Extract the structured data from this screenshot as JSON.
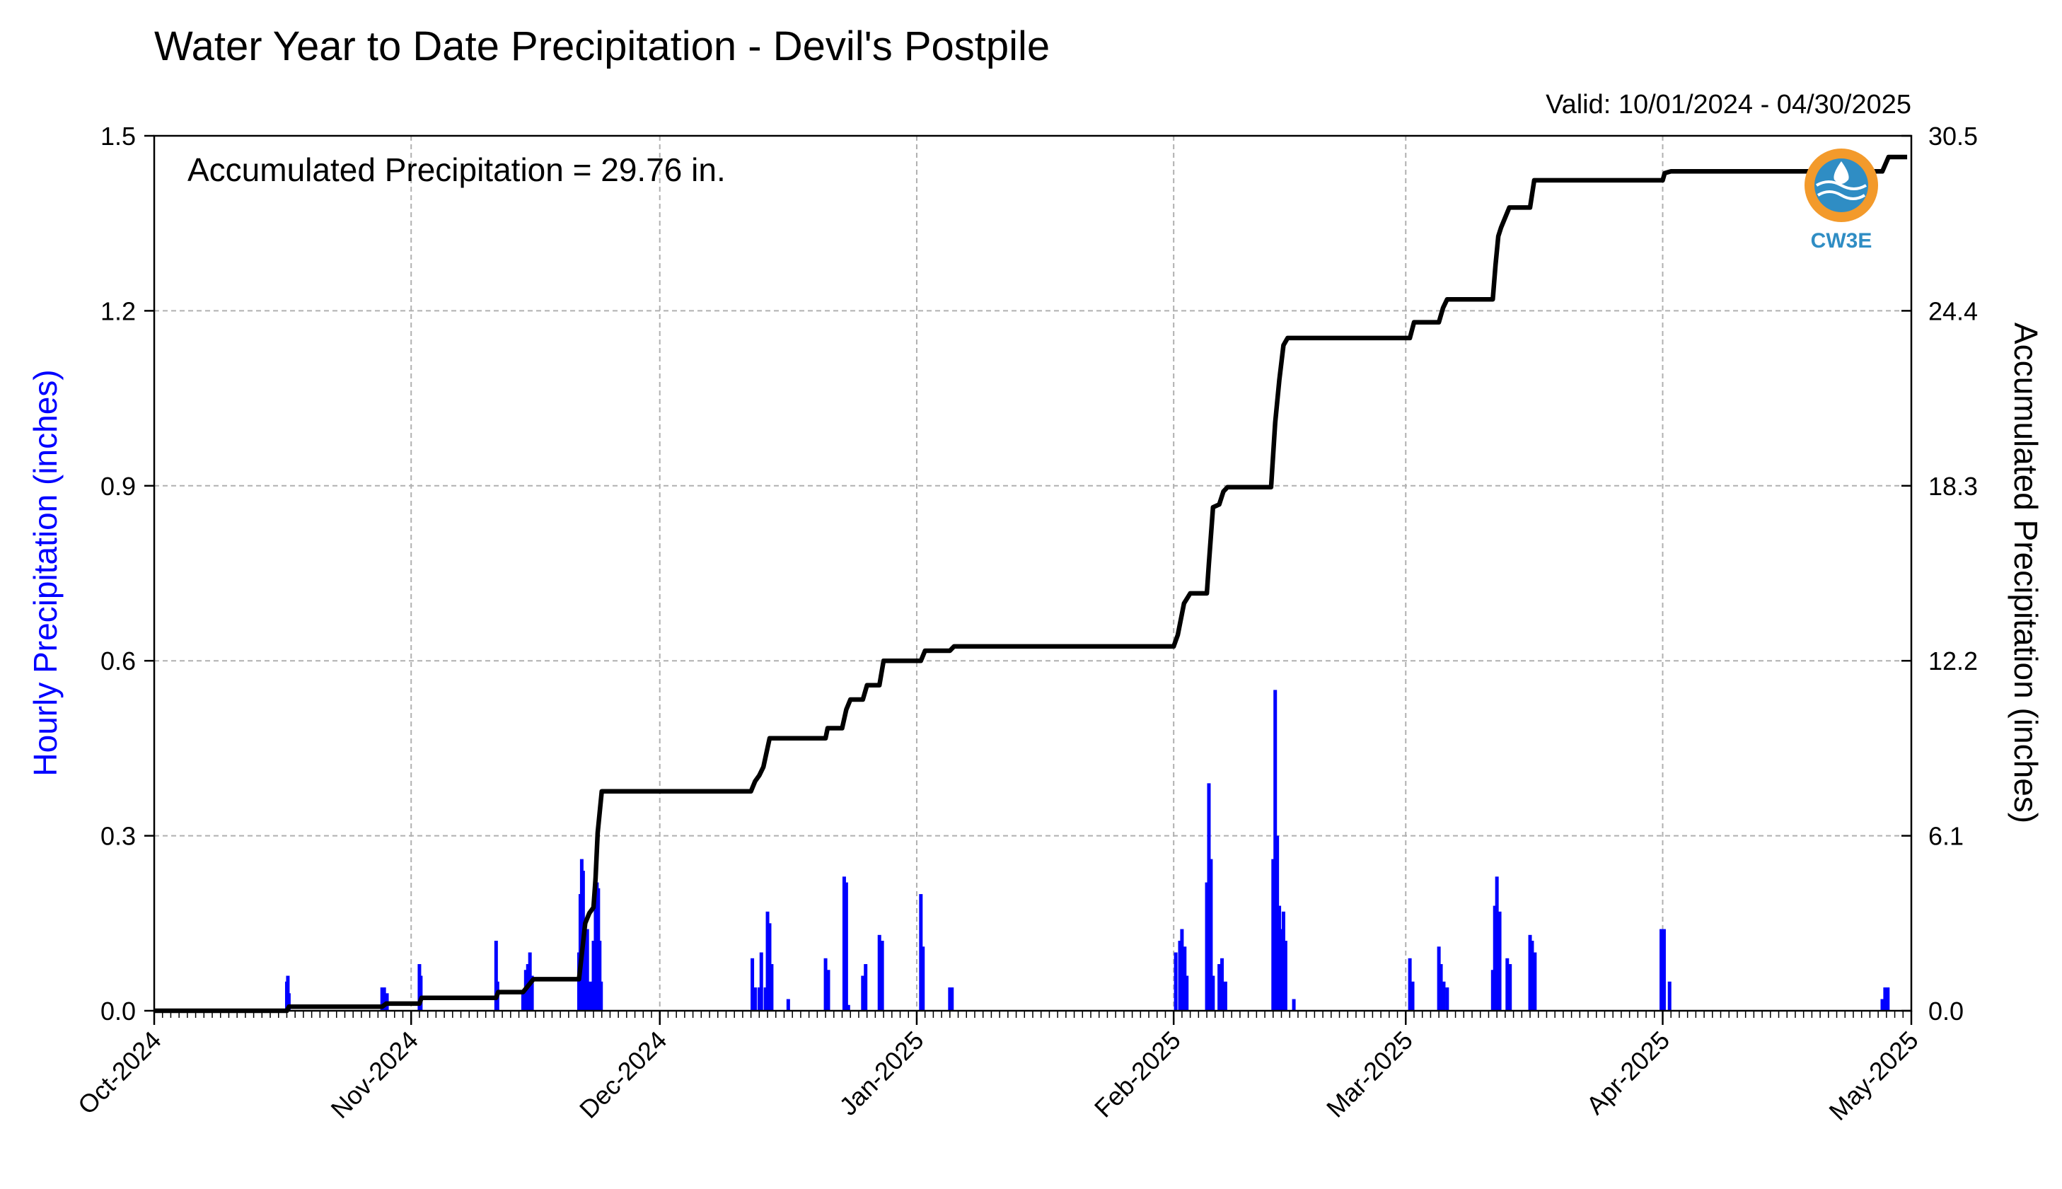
{
  "chart_data": {
    "type": "bar",
    "title": "Water Year to Date Precipitation - Devil's Postpile",
    "subtitle": "Valid: 10/01/2024 - 04/30/2025",
    "annotation": "Accumulated Precipitation = 29.76 in.",
    "logo_text": "CW3E",
    "ylabel": "Hourly Precipitation (inches)",
    "ylabel_right": "Accumulated Precipitation (inches)",
    "ylim": [
      0,
      1.5
    ],
    "ylim_right": [
      0,
      30.5
    ],
    "yticks": [
      "0.0",
      "0.3",
      "0.6",
      "0.9",
      "1.2",
      "1.5"
    ],
    "yticks_right": [
      "0.0",
      "6.1",
      "12.2",
      "18.3",
      "24.4",
      "30.5"
    ],
    "x_range": [
      "2024-10-01",
      "2025-05-01"
    ],
    "xticks": [
      {
        "date": "2024-10-01",
        "label": "Oct-2024"
      },
      {
        "date": "2024-11-01",
        "label": "Nov-2024"
      },
      {
        "date": "2024-12-01",
        "label": "Dec-2024"
      },
      {
        "date": "2025-01-01",
        "label": "Jan-2025"
      },
      {
        "date": "2025-02-01",
        "label": "Feb-2025"
      },
      {
        "date": "2025-03-01",
        "label": "Mar-2025"
      },
      {
        "date": "2025-04-01",
        "label": "Apr-2025"
      },
      {
        "date": "2025-05-01",
        "label": "May-2025"
      }
    ],
    "grid": true,
    "colors": {
      "hourly": "#0000ff",
      "accumulated": "#000000",
      "grid": "#b0b0b0",
      "logo_orange": "#f39a2b",
      "logo_blue": "#2f8dc4"
    },
    "series": [
      {
        "name": "Hourly Precipitation (inches)",
        "axis": "left",
        "type": "bar",
        "points": [
          [
            "2024-10-17T00",
            0.05
          ],
          [
            "2024-10-17T03",
            0.06
          ],
          [
            "2024-10-17T06",
            0.03
          ],
          [
            "2024-10-28T12",
            0.04
          ],
          [
            "2024-10-28T18",
            0.04
          ],
          [
            "2024-10-29T02",
            0.03
          ],
          [
            "2024-11-02T00",
            0.08
          ],
          [
            "2024-11-02T04",
            0.06
          ],
          [
            "2024-11-11T06",
            0.12
          ],
          [
            "2024-11-11T10",
            0.05
          ],
          [
            "2024-11-14T12",
            0.03
          ],
          [
            "2024-11-14T20",
            0.07
          ],
          [
            "2024-11-15T02",
            0.08
          ],
          [
            "2024-11-15T08",
            0.1
          ],
          [
            "2024-11-15T14",
            0.06
          ],
          [
            "2024-11-21T06",
            0.1
          ],
          [
            "2024-11-21T10",
            0.2
          ],
          [
            "2024-11-21T14",
            0.26
          ],
          [
            "2024-11-21T18",
            0.24
          ],
          [
            "2024-11-21T22",
            0.15
          ],
          [
            "2024-11-22T06",
            0.14
          ],
          [
            "2024-11-22T14",
            0.05
          ],
          [
            "2024-11-23T00",
            0.12
          ],
          [
            "2024-11-23T06",
            0.18
          ],
          [
            "2024-11-23T10",
            0.22
          ],
          [
            "2024-11-23T14",
            0.21
          ],
          [
            "2024-11-23T18",
            0.12
          ],
          [
            "2024-11-23T22",
            0.05
          ],
          [
            "2024-12-12T04",
            0.09
          ],
          [
            "2024-12-12T12",
            0.04
          ],
          [
            "2024-12-13T00",
            0.04
          ],
          [
            "2024-12-13T06",
            0.1
          ],
          [
            "2024-12-13T18",
            0.04
          ],
          [
            "2024-12-14T00",
            0.17
          ],
          [
            "2024-12-14T06",
            0.15
          ],
          [
            "2024-12-14T12",
            0.08
          ],
          [
            "2024-12-16T12",
            0.02
          ],
          [
            "2024-12-21T00",
            0.09
          ],
          [
            "2024-12-21T08",
            0.07
          ],
          [
            "2024-12-23T06",
            0.23
          ],
          [
            "2024-12-23T12",
            0.22
          ],
          [
            "2024-12-23T18",
            0.01
          ],
          [
            "2024-12-25T12",
            0.06
          ],
          [
            "2024-12-25T20",
            0.08
          ],
          [
            "2024-12-27T12",
            0.13
          ],
          [
            "2024-12-27T20",
            0.12
          ],
          [
            "2025-01-01T12",
            0.2
          ],
          [
            "2025-01-01T18",
            0.11
          ],
          [
            "2025-01-05T00",
            0.04
          ],
          [
            "2025-01-05T06",
            0.04
          ],
          [
            "2025-02-01T06",
            0.1
          ],
          [
            "2025-02-01T18",
            0.12
          ],
          [
            "2025-02-02T00",
            0.14
          ],
          [
            "2025-02-02T08",
            0.11
          ],
          [
            "2025-02-02T14",
            0.06
          ],
          [
            "2025-02-05T00",
            0.22
          ],
          [
            "2025-02-05T06",
            0.39
          ],
          [
            "2025-02-05T12",
            0.26
          ],
          [
            "2025-02-05T18",
            0.06
          ],
          [
            "2025-02-06T12",
            0.08
          ],
          [
            "2025-02-06T20",
            0.09
          ],
          [
            "2025-02-07T06",
            0.05
          ],
          [
            "2025-02-13T00",
            0.26
          ],
          [
            "2025-02-13T06",
            0.55
          ],
          [
            "2025-02-13T12",
            0.3
          ],
          [
            "2025-02-13T18",
            0.18
          ],
          [
            "2025-02-14T00",
            0.14
          ],
          [
            "2025-02-14T06",
            0.17
          ],
          [
            "2025-02-14T12",
            0.12
          ],
          [
            "2025-02-15T12",
            0.02
          ],
          [
            "2025-03-01T12",
            0.09
          ],
          [
            "2025-03-01T20",
            0.05
          ],
          [
            "2025-03-05T00",
            0.11
          ],
          [
            "2025-03-05T06",
            0.08
          ],
          [
            "2025-03-05T14",
            0.05
          ],
          [
            "2025-03-06T00",
            0.04
          ],
          [
            "2025-03-11T12",
            0.07
          ],
          [
            "2025-03-11T18",
            0.18
          ],
          [
            "2025-03-12T00",
            0.23
          ],
          [
            "2025-03-12T08",
            0.17
          ],
          [
            "2025-03-13T06",
            0.09
          ],
          [
            "2025-03-13T14",
            0.08
          ],
          [
            "2025-03-16T00",
            0.13
          ],
          [
            "2025-03-16T06",
            0.12
          ],
          [
            "2025-03-16T14",
            0.1
          ],
          [
            "2025-03-31T20",
            0.14
          ],
          [
            "2025-04-01T04",
            0.14
          ],
          [
            "2025-04-01T20",
            0.05
          ],
          [
            "2025-04-27T12",
            0.02
          ],
          [
            "2025-04-27T20",
            0.04
          ],
          [
            "2025-04-28T04",
            0.04
          ]
        ]
      },
      {
        "name": "Accumulated Precipitation (inches)",
        "axis": "right",
        "type": "line",
        "points": [
          [
            "2024-10-01T00",
            0.0
          ],
          [
            "2024-10-17T00",
            0.0
          ],
          [
            "2024-10-17T06",
            0.14
          ],
          [
            "2024-10-28T12",
            0.14
          ],
          [
            "2024-10-29T00",
            0.25
          ],
          [
            "2024-11-02T00",
            0.25
          ],
          [
            "2024-11-02T06",
            0.45
          ],
          [
            "2024-11-11T06",
            0.45
          ],
          [
            "2024-11-11T12",
            0.65
          ],
          [
            "2024-11-14T12",
            0.65
          ],
          [
            "2024-11-15T18",
            1.1
          ],
          [
            "2024-11-21T06",
            1.1
          ],
          [
            "2024-11-21T18",
            2.4
          ],
          [
            "2024-11-22T00",
            3.05
          ],
          [
            "2024-11-22T12",
            3.4
          ],
          [
            "2024-11-23T00",
            3.6
          ],
          [
            "2024-11-23T06",
            4.6
          ],
          [
            "2024-11-23T12",
            6.2
          ],
          [
            "2024-11-24T00",
            7.65
          ],
          [
            "2024-12-12T00",
            7.65
          ],
          [
            "2024-12-12T12",
            8.0
          ],
          [
            "2024-12-13T00",
            8.2
          ],
          [
            "2024-12-13T12",
            8.5
          ],
          [
            "2024-12-14T06",
            9.5
          ],
          [
            "2024-12-21T00",
            9.5
          ],
          [
            "2024-12-21T06",
            9.85
          ],
          [
            "2024-12-23T00",
            9.85
          ],
          [
            "2024-12-23T12",
            10.5
          ],
          [
            "2024-12-24T00",
            10.85
          ],
          [
            "2024-12-25T12",
            10.85
          ],
          [
            "2024-12-26T00",
            11.35
          ],
          [
            "2024-12-27T12",
            11.35
          ],
          [
            "2024-12-28T00",
            12.2
          ],
          [
            "2025-01-01T12",
            12.2
          ],
          [
            "2025-01-02T00",
            12.55
          ],
          [
            "2025-01-05T00",
            12.55
          ],
          [
            "2025-01-05T12",
            12.7
          ],
          [
            "2025-02-01T00",
            12.7
          ],
          [
            "2025-02-01T12",
            13.1
          ],
          [
            "2025-02-02T06",
            14.2
          ],
          [
            "2025-02-03T00",
            14.55
          ],
          [
            "2025-02-05T00",
            14.55
          ],
          [
            "2025-02-05T06",
            15.6
          ],
          [
            "2025-02-05T18",
            17.55
          ],
          [
            "2025-02-06T12",
            17.65
          ],
          [
            "2025-02-07T00",
            18.1
          ],
          [
            "2025-02-07T12",
            18.25
          ],
          [
            "2025-02-12T18",
            18.25
          ],
          [
            "2025-02-13T06",
            20.5
          ],
          [
            "2025-02-13T18",
            22.0
          ],
          [
            "2025-02-14T06",
            23.2
          ],
          [
            "2025-02-14T18",
            23.45
          ],
          [
            "2025-03-01T12",
            23.45
          ],
          [
            "2025-03-02T00",
            24.0
          ],
          [
            "2025-03-05T00",
            24.0
          ],
          [
            "2025-03-05T12",
            24.5
          ],
          [
            "2025-03-06T00",
            24.8
          ],
          [
            "2025-03-11T12",
            24.8
          ],
          [
            "2025-03-11T20",
            26.0
          ],
          [
            "2025-03-12T04",
            27.0
          ],
          [
            "2025-03-12T12",
            27.3
          ],
          [
            "2025-03-13T12",
            28.0
          ],
          [
            "2025-03-16T00",
            28.0
          ],
          [
            "2025-03-16T12",
            28.95
          ],
          [
            "2025-04-01T00",
            28.95
          ],
          [
            "2025-04-01T06",
            29.2
          ],
          [
            "2025-04-02T00",
            29.26
          ],
          [
            "2025-04-27T12",
            29.26
          ],
          [
            "2025-04-28T06",
            29.76
          ],
          [
            "2025-04-30T12",
            29.76
          ]
        ]
      }
    ]
  }
}
